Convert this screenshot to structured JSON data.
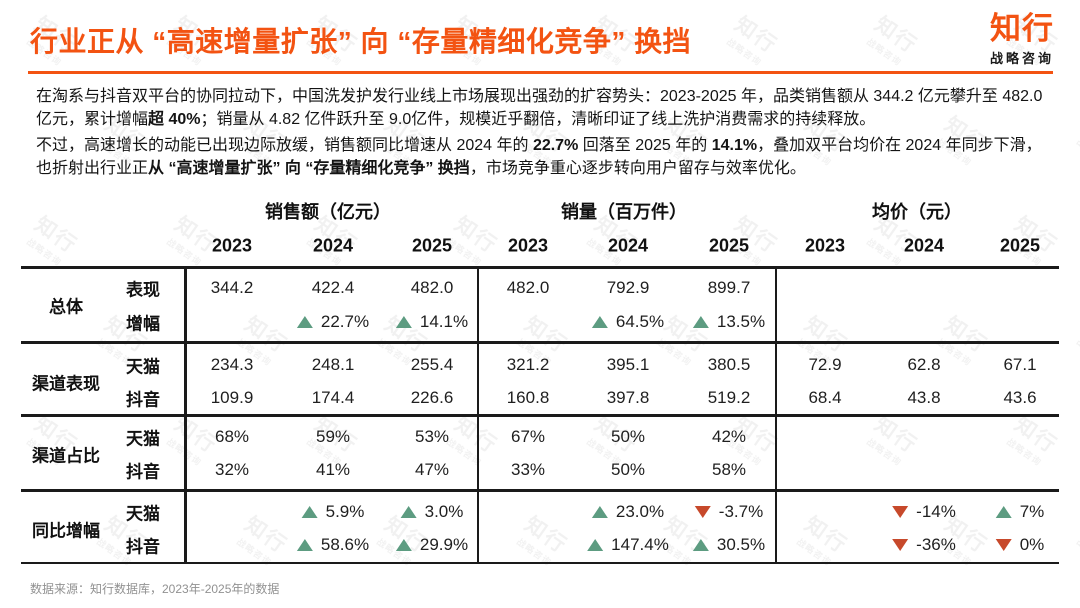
{
  "header": {
    "title": "行业正从 “高速增量扩张” 向 “存量精细化竞争” 换挡",
    "logo": {
      "name": "知行",
      "tagline": "战略咨询"
    }
  },
  "colors": {
    "accent_orange": "#f35312",
    "up_green": "#5d9c81",
    "down_red": "#c7492b",
    "border_black": "#1a1a1a"
  },
  "intro": {
    "paragraphs": [
      {
        "segments": [
          {
            "text": "在淘系与抖音双平台的协同拉动下，中国洗发护发行业线上市场展现出强劲的扩容势头：2023-2025 年，品类销售额从 344.2 亿元攀升至 482.0 亿元，累计增幅",
            "bold": false
          },
          {
            "text": "超 40%",
            "bold": true
          },
          {
            "text": "；销量从 4.82 亿件跃升至 9.0亿件，规模近乎翻倍，清晰印证了线上洗护消费需求的持续释放。",
            "bold": false
          }
        ]
      },
      {
        "segments": [
          {
            "text": "不过，高速增长的动能已出现边际放缓，销售额同比增速从 2024 年的 ",
            "bold": false
          },
          {
            "text": "22.7%",
            "bold": true
          },
          {
            "text": " 回落至 2025 年的 ",
            "bold": false
          },
          {
            "text": "14.1%",
            "bold": true
          },
          {
            "text": "，叠加双平台均价在 2024 年同步下滑，也折射出行业正",
            "bold": false
          },
          {
            "text": "从 “高速增量扩张” 向 “存量精细化竞争” 换挡",
            "bold": true
          },
          {
            "text": "，市场竞争重心逐步转向用户留存与效率优化。",
            "bold": false
          }
        ]
      }
    ]
  },
  "table": {
    "column_groups": [
      {
        "title": "销售额（亿元）",
        "years": [
          "2023",
          "2024",
          "2025"
        ]
      },
      {
        "title": "销量（百万件）",
        "years": [
          "2023",
          "2024",
          "2025"
        ]
      },
      {
        "title": "均价（元）",
        "years": [
          "2023",
          "2024",
          "2025"
        ]
      }
    ],
    "row_groups": [
      {
        "label": "总体",
        "rows": [
          {
            "sublabel": "表现",
            "cells": [
              "344.2",
              "422.4",
              "482.0",
              "482.0",
              "792.9",
              "899.7",
              "",
              "",
              ""
            ]
          },
          {
            "sublabel": "增幅",
            "cells": [
              "",
              {
                "arrow": "up",
                "value": "22.7%"
              },
              {
                "arrow": "up",
                "value": "14.1%"
              },
              "",
              {
                "arrow": "up",
                "value": "64.5%"
              },
              {
                "arrow": "up",
                "value": "13.5%"
              },
              "",
              "",
              ""
            ]
          }
        ]
      },
      {
        "label": "渠道表现",
        "rows": [
          {
            "sublabel": "天猫",
            "cells": [
              "234.3",
              "248.1",
              "255.4",
              "321.2",
              "395.1",
              "380.5",
              "72.9",
              "62.8",
              "67.1"
            ]
          },
          {
            "sublabel": "抖音",
            "cells": [
              "109.9",
              "174.4",
              "226.6",
              "160.8",
              "397.8",
              "519.2",
              "68.4",
              "43.8",
              "43.6"
            ]
          }
        ]
      },
      {
        "label": "渠道占比",
        "rows": [
          {
            "sublabel": "天猫",
            "cells": [
              "68%",
              "59%",
              "53%",
              "67%",
              "50%",
              "42%",
              "",
              "",
              ""
            ]
          },
          {
            "sublabel": "抖音",
            "cells": [
              "32%",
              "41%",
              "47%",
              "33%",
              "50%",
              "58%",
              "",
              "",
              ""
            ]
          }
        ]
      },
      {
        "label": "同比增幅",
        "rows": [
          {
            "sublabel": "天猫",
            "cells": [
              "",
              {
                "arrow": "up",
                "value": "5.9%"
              },
              {
                "arrow": "up",
                "value": "3.0%"
              },
              "",
              {
                "arrow": "up",
                "value": "23.0%"
              },
              {
                "arrow": "down",
                "value": "-3.7%"
              },
              "",
              {
                "arrow": "down",
                "value": "-14%"
              },
              {
                "arrow": "up",
                "value": "7%"
              }
            ]
          },
          {
            "sublabel": "抖音",
            "cells": [
              "",
              {
                "arrow": "up",
                "value": "58.6%"
              },
              {
                "arrow": "up",
                "value": "29.9%"
              },
              "",
              {
                "arrow": "up",
                "value": "147.4%"
              },
              {
                "arrow": "up",
                "value": "30.5%"
              },
              "",
              {
                "arrow": "down",
                "value": "-36%"
              },
              {
                "arrow": "down",
                "value": "0%"
              }
            ]
          }
        ]
      }
    ]
  },
  "footer": {
    "source": "数据来源：知行数据库，2023年-2025年的数据"
  },
  "watermark": {
    "text": "知行",
    "subtext": "战略咨询"
  }
}
